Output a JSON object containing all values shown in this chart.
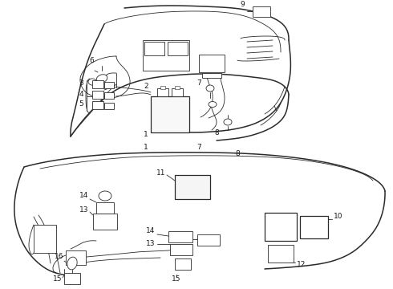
{
  "bg_color": "#ffffff",
  "line_color": "#2a2a2a",
  "label_color": "#1a1a1a",
  "label_fontsize": 6.5,
  "fig_width": 4.9,
  "fig_height": 3.6,
  "dpi": 100,
  "top_section": {
    "ymin": 0.45,
    "ymax": 1.0
  },
  "bottom_section": {
    "ymin": 0.0,
    "ymax": 0.42
  }
}
